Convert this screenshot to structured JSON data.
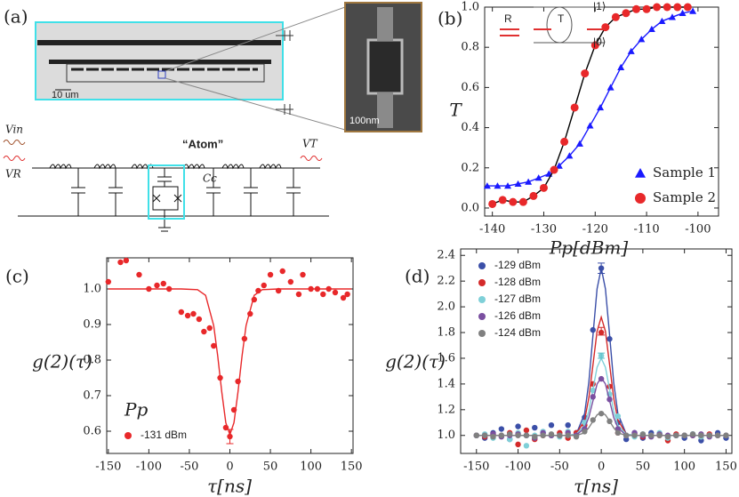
{
  "diagram": {
    "panel": "(a)",
    "scale_bar": "10 um",
    "sem_scale": "100nm",
    "atom_label": "“Atom”",
    "v_in": "Vin",
    "v_r": "VR",
    "v_t": "VT",
    "cc": "Cc"
  },
  "chart_data": [
    {
      "type": "scatter",
      "panel": "(b)",
      "x_label": "Pp[dBm]",
      "y_label": "T",
      "legend": "lower right",
      "annotations": [
        "R",
        "T",
        "|1⟩",
        "|0⟩"
      ],
      "xlim": [
        -141.5,
        -96
      ],
      "xticks": [
        -140,
        -130,
        -120,
        -110,
        -100
      ],
      "ylim": [
        -0.04,
        1.0
      ],
      "yticks": [
        {
          "value": 0,
          "label": "0.0"
        },
        0.2,
        0.4,
        0.6,
        0.8,
        {
          "value": 1,
          "label": "1.0"
        }
      ],
      "series": [
        {
          "name": "Sample 1",
          "color": "#1a1aff",
          "marker": "triangle",
          "line_color": "#1a1aff",
          "x": [
            -141,
            -139,
            -137,
            -135,
            -133,
            -131,
            -129,
            -127,
            -125,
            -123,
            -121,
            -119,
            -117,
            -115,
            -113,
            -111,
            -109,
            -107,
            -105,
            -103,
            -101
          ],
          "values": [
            0.11,
            0.11,
            0.11,
            0.12,
            0.13,
            0.15,
            0.17,
            0.21,
            0.26,
            0.32,
            0.41,
            0.5,
            0.6,
            0.7,
            0.78,
            0.84,
            0.89,
            0.93,
            0.95,
            0.97,
            0.98
          ]
        },
        {
          "name": "Sample 2",
          "color": "#e8282a",
          "marker": "circle",
          "line_color": "#000000",
          "x": [
            -140,
            -138,
            -136,
            -134,
            -132,
            -130,
            -128,
            -126,
            -124,
            -122,
            -120,
            -118,
            -116,
            -114,
            -112,
            -110,
            -108,
            -106,
            -104,
            -102
          ],
          "values": [
            0.02,
            0.04,
            0.03,
            0.03,
            0.06,
            0.1,
            0.19,
            0.33,
            0.5,
            0.67,
            0.81,
            0.9,
            0.95,
            0.97,
            0.99,
            0.99,
            1.0,
            1.0,
            1.0,
            1.0
          ]
        }
      ]
    },
    {
      "type": "scatter",
      "panel": "(c)",
      "x_label": "τ[ns]",
      "y_label": "g(2)(τ)",
      "legend": "lower left",
      "legend_title": "Pp",
      "xlim": [
        -152,
        152
      ],
      "xticks": [
        -150,
        -100,
        -50,
        0,
        50,
        100,
        150
      ],
      "ylim": [
        0.5375,
        1.0875
      ],
      "yticks": [
        0.6,
        0.7,
        0.8,
        0.9,
        {
          "value": 1,
          "label": "1.0"
        }
      ],
      "error_bars": [
        {
          "x": 0,
          "low": 0.565,
          "high": 0.605,
          "color": "#e8282a"
        }
      ],
      "series": [
        {
          "name": "-131 dBm",
          "color": "#e8282a",
          "marker": "circle",
          "x": [
            -150,
            -135,
            -128,
            -112,
            -100,
            -90,
            -82,
            -75,
            -60,
            -52,
            -45,
            -38,
            -32,
            -25,
            -20,
            -12,
            -5,
            0,
            5,
            10,
            18,
            25,
            30,
            35,
            42,
            50,
            60,
            65,
            75,
            85,
            90,
            100,
            108,
            115,
            122,
            130,
            140,
            145
          ],
          "values": [
            1.02,
            1.075,
            1.08,
            1.04,
            1.0,
            1.01,
            1.015,
            1.0,
            0.935,
            0.925,
            0.93,
            0.915,
            0.88,
            0.89,
            0.84,
            0.75,
            0.61,
            0.585,
            0.66,
            0.74,
            0.86,
            0.93,
            0.97,
            0.995,
            1.01,
            1.04,
            0.995,
            1.05,
            1.02,
            0.985,
            1.04,
            1.0,
            1.0,
            0.985,
            1.0,
            0.99,
            0.975,
            0.985
          ]
        },
        {
          "style": "line",
          "color": "#e8282a",
          "x": [
            -150,
            -60,
            -40,
            -30,
            -20,
            -15,
            -10,
            -5,
            0,
            5,
            10,
            15,
            20,
            30,
            40,
            60,
            150
          ],
          "values": [
            1.0,
            1.0,
            0.998,
            0.982,
            0.897,
            0.812,
            0.71,
            0.624,
            0.59,
            0.624,
            0.71,
            0.812,
            0.897,
            0.982,
            0.998,
            1.0,
            1.0
          ]
        }
      ]
    },
    {
      "type": "scatter",
      "panel": "(d)",
      "x_label": "τ[ns]",
      "y_label": "g(2)(τ)",
      "legend": "upper left",
      "xlim": [
        -169,
        157
      ],
      "xticks": [
        -150,
        -100,
        -50,
        0,
        50,
        100,
        150
      ],
      "ylim": [
        0.86,
        2.45
      ],
      "yticks": [
        {
          "value": 1,
          "label": "1.0"
        },
        1.2,
        1.4,
        1.6,
        1.8,
        {
          "value": 2,
          "label": "2.0"
        },
        2.2,
        2.4
      ],
      "x": [
        -150,
        -140,
        -130,
        -120,
        -110,
        -100,
        -90,
        -80,
        -70,
        -60,
        -50,
        -40,
        -30,
        -20,
        -10,
        0,
        10,
        20,
        30,
        40,
        50,
        60,
        70,
        80,
        90,
        100,
        110,
        120,
        130,
        140,
        150
      ],
      "fit_x": [
        -150,
        -40,
        -30,
        -20,
        -15,
        -10,
        -5,
        0,
        5,
        10,
        15,
        20,
        30,
        40,
        150
      ],
      "error_bars": [
        {
          "x": 0,
          "low": 2.26,
          "high": 2.34,
          "color": "#3b4fa8"
        },
        {
          "x": 0,
          "low": 1.78,
          "high": 1.84,
          "color": "#d42a2a"
        },
        {
          "x": 0,
          "low": 1.6,
          "high": 1.64,
          "color": "#5cbfc8"
        }
      ],
      "series": [
        {
          "name": "-129 dBm",
          "color": "#3b4fa8",
          "marker": "circle",
          "values": [
            1.0,
            0.98,
            1.02,
            1.05,
            0.97,
            1.07,
            1.0,
            1.06,
            1.02,
            1.08,
            1.0,
            1.08,
            1.02,
            1.14,
            1.82,
            2.3,
            1.75,
            1.1,
            0.97,
            1.02,
            0.98,
            1.02,
            1.01,
            0.99,
            1.0,
            0.98,
            1.01,
            0.96,
            1.0,
            1.02,
            0.98
          ],
          "fit": [
            1.0,
            1.0,
            1.01,
            1.17,
            1.41,
            1.78,
            2.14,
            2.3,
            2.14,
            1.78,
            1.41,
            1.17,
            1.01,
            1.0,
            1.0
          ]
        },
        {
          "name": "-128 dBm",
          "color": "#d42a2a",
          "marker": "circle",
          "values": [
            1.0,
            0.99,
            1.01,
            1.0,
            1.02,
            0.93,
            1.04,
            0.97,
            1.0,
            1.0,
            1.02,
            0.98,
            1.02,
            1.08,
            1.4,
            1.8,
            1.38,
            1.02,
            1.0,
            1.01,
            0.99,
            1.0,
            1.0,
            0.96,
            1.01,
            1.0,
            1.0,
            0.99,
            1.01,
            1.0,
            1.0
          ],
          "fit": [
            1.0,
            1.0,
            1.01,
            1.12,
            1.29,
            1.55,
            1.81,
            1.92,
            1.81,
            1.55,
            1.29,
            1.12,
            1.01,
            1.0,
            1.0
          ]
        },
        {
          "name": "-127 dBm",
          "color": "#7fd0d8",
          "marker": "circle",
          "values": [
            1.0,
            1.01,
            0.98,
            1.0,
            0.97,
            1.02,
            0.92,
            1.0,
            1.03,
            1.0,
            0.99,
            1.03,
            1.0,
            1.1,
            1.35,
            1.62,
            1.32,
            1.15,
            1.0,
            0.99,
            1.01,
            1.0,
            1.02,
            0.98,
            1.0,
            1.0,
            1.01,
            0.99,
            1.0,
            1.0,
            1.0
          ],
          "fit": [
            1.0,
            1.0,
            1.01,
            1.08,
            1.19,
            1.36,
            1.53,
            1.6,
            1.53,
            1.36,
            1.19,
            1.08,
            1.01,
            1.0,
            1.0
          ]
        },
        {
          "name": "-126 dBm",
          "color": "#7a4fa0",
          "marker": "circle",
          "values": [
            1.0,
            1.0,
            1.01,
            0.99,
            1.0,
            1.01,
            1.0,
            0.98,
            1.02,
            1.0,
            1.0,
            1.02,
            1.0,
            1.05,
            1.3,
            1.44,
            1.28,
            1.05,
            1.0,
            1.02,
            1.0,
            0.99,
            1.01,
            1.0,
            1.0,
            1.0,
            1.0,
            1.01,
            0.99,
            1.0,
            1.0
          ],
          "fit": [
            1.0,
            1.0,
            1.0,
            1.06,
            1.14,
            1.27,
            1.4,
            1.45,
            1.4,
            1.27,
            1.14,
            1.06,
            1.0,
            1.0,
            1.0
          ]
        },
        {
          "name": "-124 dBm",
          "color": "#808080",
          "marker": "circle",
          "values": [
            1.0,
            1.0,
            0.99,
            1.0,
            1.01,
            1.0,
            1.0,
            0.99,
            1.0,
            1.01,
            1.0,
            1.0,
            0.99,
            1.03,
            1.12,
            1.17,
            1.11,
            1.02,
            1.0,
            1.0,
            1.01,
            1.0,
            1.0,
            0.99,
            1.0,
            1.0,
            1.01,
            1.0,
            1.0,
            1.0,
            1.0
          ],
          "fit": [
            1.0,
            1.0,
            1.0,
            1.02,
            1.06,
            1.11,
            1.16,
            1.18,
            1.16,
            1.11,
            1.06,
            1.02,
            1.0,
            1.0,
            1.0
          ]
        }
      ]
    }
  ]
}
